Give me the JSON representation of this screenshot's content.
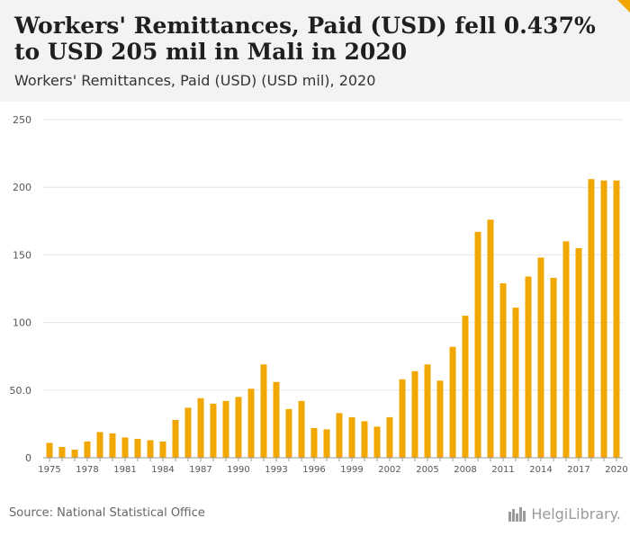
{
  "header": {
    "title": "Workers' Remittances, Paid (USD) fell 0.437% to USD 205 mil in Mali in 2020",
    "subtitle": "Workers' Remittances, Paid (USD) (USD mil), 2020"
  },
  "footer": {
    "source": "Source: National Statistical Office",
    "logo_text": "HelgiLibrary."
  },
  "colors": {
    "bar": "#f2a700",
    "grid": "#e6e6e6",
    "accent": "#f2a700"
  },
  "chart_data": {
    "type": "bar",
    "categories": [
      "1975",
      "1976",
      "1977",
      "1978",
      "1979",
      "1980",
      "1981",
      "1982",
      "1983",
      "1984",
      "1985",
      "1986",
      "1987",
      "1988",
      "1989",
      "1990",
      "1991",
      "1992",
      "1993",
      "1994",
      "1995",
      "1996",
      "1997",
      "1998",
      "1999",
      "2000",
      "2001",
      "2002",
      "2003",
      "2004",
      "2005",
      "2006",
      "2007",
      "2008",
      "2009",
      "2010",
      "2011",
      "2012",
      "2013",
      "2014",
      "2015",
      "2016",
      "2017",
      "2018",
      "2019",
      "2020"
    ],
    "values": [
      11,
      8,
      6,
      12,
      19,
      18,
      15,
      14,
      13,
      12,
      28,
      37,
      44,
      40,
      42,
      45,
      51,
      69,
      56,
      36,
      42,
      22,
      21,
      33,
      30,
      27,
      23,
      30,
      58,
      64,
      69,
      57,
      82,
      105,
      167,
      176,
      129,
      111,
      134,
      148,
      133,
      160,
      155,
      206,
      205,
      205
    ],
    "x_tick_labels": [
      "1975",
      "1978",
      "1981",
      "1984",
      "1987",
      "1990",
      "1993",
      "1996",
      "1999",
      "2002",
      "2005",
      "2008",
      "2011",
      "2014",
      "2017",
      "2020"
    ],
    "y_ticks": [
      0,
      50,
      100,
      150,
      200,
      250
    ],
    "y_tick_labels": [
      "0",
      "50.0",
      "100",
      "150",
      "200",
      "250"
    ],
    "ylim": [
      0,
      250
    ],
    "grid": true
  }
}
